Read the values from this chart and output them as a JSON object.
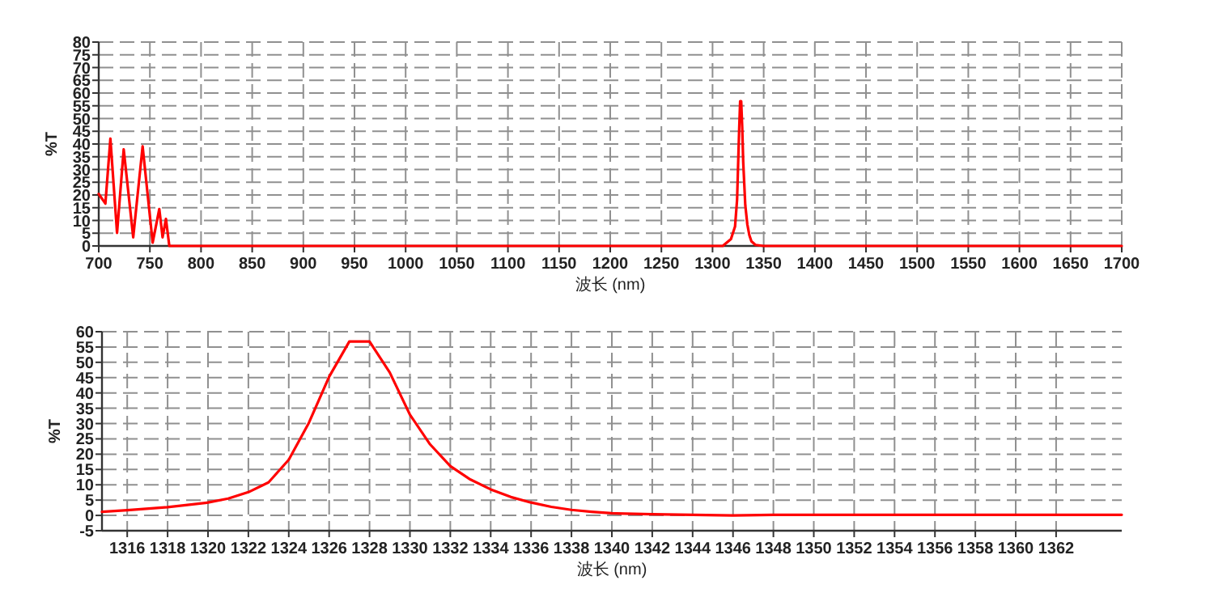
{
  "chart_data": [
    {
      "type": "line",
      "xlabel": "波长 (nm)",
      "ylabel": "%T",
      "xlim": [
        700,
        1700
      ],
      "ylim": [
        0,
        80
      ],
      "xticks": [
        700,
        750,
        800,
        850,
        900,
        950,
        1000,
        1050,
        1100,
        1150,
        1200,
        1250,
        1300,
        1350,
        1400,
        1450,
        1500,
        1550,
        1600,
        1650,
        1700
      ],
      "yticks": [
        0,
        5,
        10,
        15,
        20,
        25,
        30,
        35,
        40,
        45,
        50,
        55,
        60,
        65,
        70,
        75,
        80
      ],
      "grid": true,
      "series": [
        {
          "color": "#ff0000",
          "x": [
            700,
            706.5,
            711.4,
            717.9,
            724.4,
            733.7,
            742.9,
            752.7,
            759.2,
            762.4,
            765.7,
            769,
            1310,
            1318,
            1322,
            1324,
            1326,
            1327,
            1328,
            1329,
            1330,
            1332,
            1334,
            1336,
            1338,
            1342,
            1350,
            1700
          ],
          "values": [
            20.4,
            16.6,
            42.1,
            5.1,
            37.9,
            3.4,
            39.1,
            1.3,
            14.5,
            3.4,
            10.6,
            0,
            0,
            2.7,
            7.6,
            18.2,
            45.3,
            56.8,
            56.8,
            46.7,
            32.9,
            16.1,
            8.5,
            4.2,
            1.8,
            0.4,
            0,
            0
          ]
        }
      ]
    },
    {
      "type": "line",
      "xlabel": "波长 (nm)",
      "ylabel": "%T",
      "xlim": [
        1314.75,
        1365.25
      ],
      "ylim": [
        -5,
        60
      ],
      "xticks": [
        1316,
        1318,
        1320,
        1322,
        1324,
        1326,
        1328,
        1330,
        1332,
        1334,
        1336,
        1338,
        1340,
        1342,
        1344,
        1346,
        1348,
        1350,
        1352,
        1354,
        1356,
        1358,
        1360,
        1362
      ],
      "yticks": [
        -5,
        0,
        5,
        10,
        15,
        20,
        25,
        30,
        35,
        40,
        45,
        50,
        55,
        60
      ],
      "grid": true,
      "series": [
        {
          "color": "#ff0000",
          "x": [
            1314.75,
            1316,
            1318,
            1320,
            1321,
            1322,
            1323,
            1324,
            1325,
            1326,
            1327,
            1328,
            1329,
            1330,
            1331,
            1332,
            1333,
            1334,
            1335,
            1336,
            1337,
            1338,
            1339,
            1340,
            1342,
            1344,
            1346,
            1348,
            1365.25
          ],
          "values": [
            1.2,
            1.7,
            2.7,
            4.2,
            5.5,
            7.6,
            10.8,
            18.2,
            30.3,
            45.3,
            56.8,
            56.8,
            46.7,
            32.9,
            23.2,
            16.1,
            11.7,
            8.5,
            6.0,
            4.2,
            2.8,
            1.8,
            1.2,
            0.7,
            0.4,
            0.2,
            0,
            0.2,
            0.2
          ]
        }
      ]
    }
  ]
}
